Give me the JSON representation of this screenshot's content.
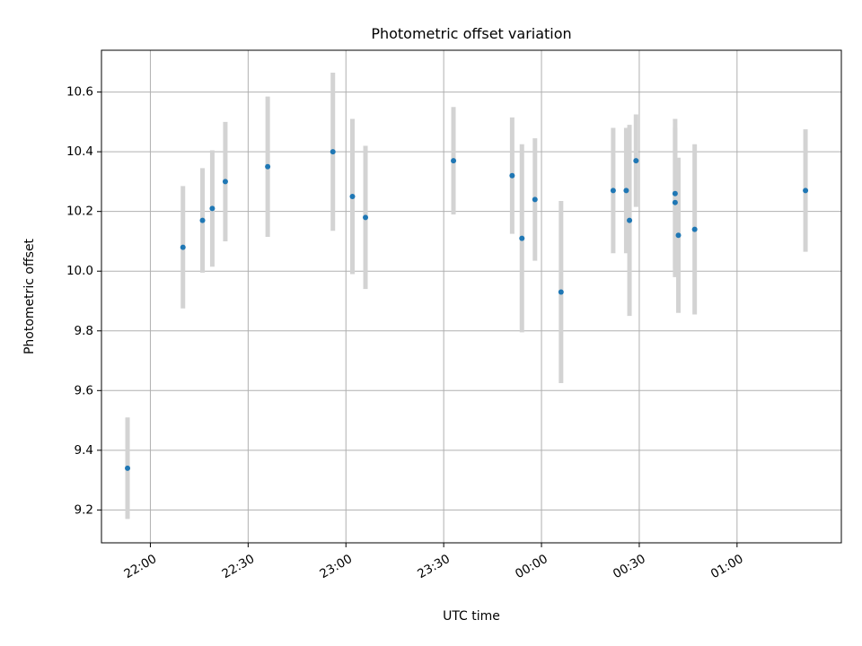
{
  "chart_data": {
    "type": "scatter",
    "title": "Photometric offset variation",
    "xlabel": "UTC time",
    "ylabel": "Photometric offset",
    "x_axis_type": "time",
    "x_range": [
      "21:45",
      "01:32"
    ],
    "ylim": [
      9.09,
      10.74
    ],
    "x_ticks": [
      "22:00",
      "22:30",
      "23:00",
      "23:30",
      "00:00",
      "00:30",
      "01:00"
    ],
    "y_ticks": [
      "9.2",
      "9.4",
      "9.6",
      "9.8",
      "10.0",
      "10.2",
      "10.4",
      "10.6"
    ],
    "grid": true,
    "legend": "none",
    "marker_color": "#1f77b4",
    "errorbar_color": "#d3d3d3",
    "points": [
      {
        "x": "21:53",
        "y": 9.34,
        "err": 0.17
      },
      {
        "x": "22:10",
        "y": 10.08,
        "err": 0.205
      },
      {
        "x": "22:16",
        "y": 10.17,
        "err": 0.175
      },
      {
        "x": "22:19",
        "y": 10.21,
        "err": 0.195
      },
      {
        "x": "22:23",
        "y": 10.3,
        "err": 0.2
      },
      {
        "x": "22:36",
        "y": 10.35,
        "err": 0.235
      },
      {
        "x": "22:56",
        "y": 10.4,
        "err": 0.265
      },
      {
        "x": "23:02",
        "y": 10.25,
        "err": 0.26
      },
      {
        "x": "23:06",
        "y": 10.18,
        "err": 0.24
      },
      {
        "x": "23:33",
        "y": 10.37,
        "err": 0.18
      },
      {
        "x": "23:51",
        "y": 10.32,
        "err": 0.195
      },
      {
        "x": "23:54",
        "y": 10.11,
        "err": 0.315
      },
      {
        "x": "23:58",
        "y": 10.24,
        "err": 0.205
      },
      {
        "x": "00:06",
        "y": 9.93,
        "err": 0.305
      },
      {
        "x": "00:22",
        "y": 10.27,
        "err": 0.21
      },
      {
        "x": "00:26",
        "y": 10.27,
        "err": 0.21
      },
      {
        "x": "00:27",
        "y": 10.17,
        "err": 0.32
      },
      {
        "x": "00:29",
        "y": 10.37,
        "err": 0.155
      },
      {
        "x": "00:41",
        "y": 10.23,
        "err": 0.25
      },
      {
        "x": "00:41",
        "y": 10.26,
        "err": 0.25
      },
      {
        "x": "00:42",
        "y": 10.12,
        "err": 0.26
      },
      {
        "x": "00:47",
        "y": 10.14,
        "err": 0.285
      },
      {
        "x": "01:21",
        "y": 10.27,
        "err": 0.205
      }
    ]
  }
}
